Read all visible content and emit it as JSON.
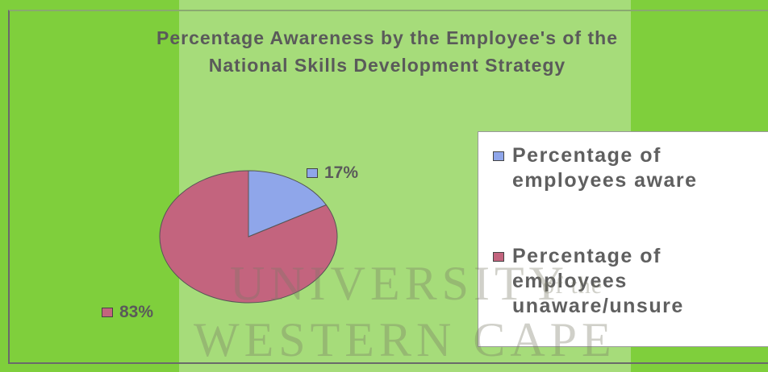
{
  "chart_data": {
    "type": "pie",
    "title": "Percentage Awareness by the Employee's of the National Skills Development Strategy",
    "categories": [
      "Percentage of employees aware",
      "Percentage of employees unaware/unsure"
    ],
    "values": [
      17,
      83
    ],
    "value_labels": [
      "17%",
      "83%"
    ],
    "colors": [
      "#8fa6ea",
      "#c3647e"
    ],
    "legend": "right"
  },
  "watermark": [
    "UNIVERSITY",
    "of the",
    "WESTERN CAPE"
  ]
}
